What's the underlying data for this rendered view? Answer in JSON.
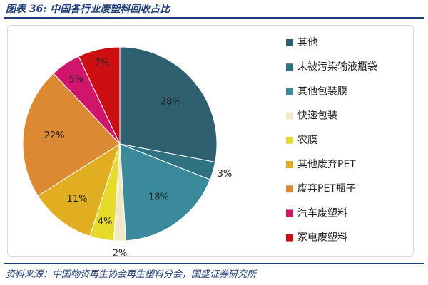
{
  "figure": {
    "title": "图表 36:  中国各行业废塑料回收占比",
    "source": "资料来源：中国物资再生协会再生塑料分会，国盛证券研究所"
  },
  "chart_data": {
    "type": "pie",
    "start_angle_deg": 0,
    "direction": "clockwise",
    "legend_position": "right",
    "slices": [
      {
        "label": "其他",
        "value": 28,
        "display": "28%",
        "color": "#2f6070"
      },
      {
        "label": "未被污染输液瓶袋",
        "value": 3,
        "display": "3%",
        "color": "#2f7282"
      },
      {
        "label": "其他包装膜",
        "value": 18,
        "display": "18%",
        "color": "#3a8a9c"
      },
      {
        "label": "快递包装",
        "value": 2,
        "display": "2%",
        "color": "#f0e9c8"
      },
      {
        "label": "农膜",
        "value": 4,
        "display": "4%",
        "color": "#e6db2a"
      },
      {
        "label": "其他废弃PET",
        "value": 11,
        "display": "11%",
        "color": "#e0ae20"
      },
      {
        "label": "废弃PET瓶子",
        "value": 22,
        "display": "22%",
        "color": "#db8a33"
      },
      {
        "label": "汽车废塑料",
        "value": 5,
        "display": "5%",
        "color": "#d1156d"
      },
      {
        "label": "家电废塑料",
        "value": 7,
        "display": "7%",
        "color": "#cc0f12"
      }
    ]
  }
}
